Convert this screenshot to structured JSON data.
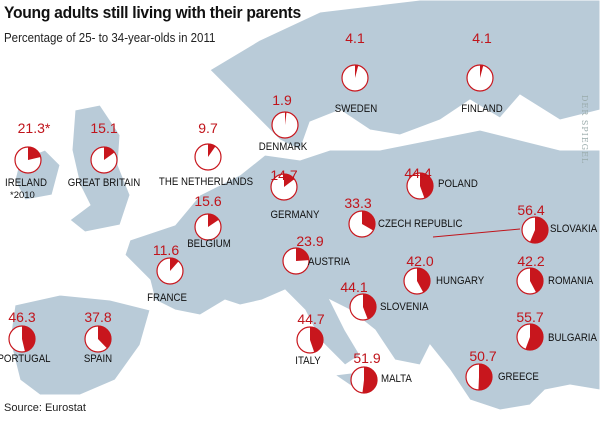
{
  "title": "Young adults still living with their parents",
  "subtitle": "Percentage of 25- to 34-year-olds in 2011",
  "source": "Source: Eurostat",
  "brand": "DER SPIEGEL",
  "colors": {
    "pie_fill": "#c8161d",
    "pie_bg": "#ffffff",
    "land": "#b9cbd8",
    "land_border": "#ffffff",
    "sea": "#ffffff"
  },
  "countries": [
    {
      "name": "SWEDEN",
      "value": 4.1,
      "label": "4.1"
    },
    {
      "name": "FINLAND",
      "value": 4.1,
      "label": "4.1"
    },
    {
      "name": "IRELAND",
      "value": 21.3,
      "label": "21.3*",
      "note": "*2010"
    },
    {
      "name": "GREAT BRITAIN",
      "value": 15.1,
      "label": "15.1"
    },
    {
      "name": "THE NETHERLANDS",
      "value": 9.7,
      "label": "9.7"
    },
    {
      "name": "DENMARK",
      "value": 1.9,
      "label": "1.9"
    },
    {
      "name": "GERMANY",
      "value": 14.7,
      "label": "14.7"
    },
    {
      "name": "BELGIUM",
      "value": 15.6,
      "label": "15.6"
    },
    {
      "name": "FRANCE",
      "value": 11.6,
      "label": "11.6"
    },
    {
      "name": "POLAND",
      "value": 44.4,
      "label": "44.4"
    },
    {
      "name": "CZECH REPUBLIC",
      "value": 33.3,
      "label": "33.3"
    },
    {
      "name": "AUSTRIA",
      "value": 23.9,
      "label": "23.9"
    },
    {
      "name": "SLOVAKIA",
      "value": 56.4,
      "label": "56.4"
    },
    {
      "name": "HUNGARY",
      "value": 42.0,
      "label": "42.0"
    },
    {
      "name": "ROMANIA",
      "value": 42.2,
      "label": "42.2"
    },
    {
      "name": "SLOVENIA",
      "value": 44.1,
      "label": "44.1"
    },
    {
      "name": "ITALY",
      "value": 44.7,
      "label": "44.7"
    },
    {
      "name": "BULGARIA",
      "value": 55.7,
      "label": "55.7"
    },
    {
      "name": "MALTA",
      "value": 51.9,
      "label": "51.9"
    },
    {
      "name": "GREECE",
      "value": 50.7,
      "label": "50.7"
    },
    {
      "name": "PORTUGAL",
      "value": 46.3,
      "label": "46.3"
    },
    {
      "name": "SPAIN",
      "value": 37.8,
      "label": "37.8"
    }
  ]
}
